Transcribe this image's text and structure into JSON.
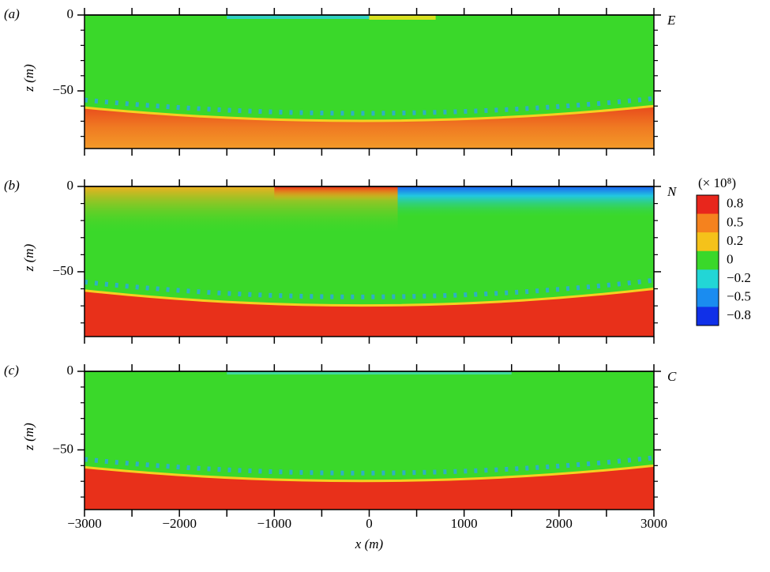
{
  "chart_data": [
    {
      "type": "heatmap",
      "panel_label": "(a)",
      "corner_label": "E",
      "ylabel": "z (m)",
      "xlim": [
        -3000,
        3000
      ],
      "ylim": [
        -88,
        0
      ],
      "show_xtick_labels": false,
      "xticks": [
        -3000,
        -2000,
        -1000,
        0,
        1000,
        2000,
        3000
      ],
      "xminor_ticks": [
        -2500,
        -1500,
        -500,
        500,
        1500,
        2500
      ],
      "yticks": [
        0,
        {
          "value": -50,
          "label": "−50"
        }
      ],
      "yminor_ticks": [
        -10,
        -20,
        -30,
        -40,
        -60,
        -70,
        -80
      ]
    },
    {
      "type": "heatmap",
      "panel_label": "(b)",
      "corner_label": "N",
      "ylabel": "z (m)",
      "xlim": [
        -3000,
        3000
      ],
      "ylim": [
        -88,
        0
      ],
      "show_xtick_labels": false,
      "xticks": [
        -3000,
        -2000,
        -1000,
        0,
        1000,
        2000,
        3000
      ],
      "xminor_ticks": [
        -2500,
        -1500,
        -500,
        500,
        1500,
        2500
      ],
      "yticks": [
        0,
        {
          "value": -50,
          "label": "−50"
        }
      ],
      "yminor_ticks": [
        -10,
        -20,
        -30,
        -40,
        -60,
        -70,
        -80
      ]
    },
    {
      "type": "heatmap",
      "panel_label": "(c)",
      "corner_label": "C",
      "ylabel": "z (m)",
      "xlabel": "x (m)",
      "xlim": [
        -3000,
        3000
      ],
      "ylim": [
        -88,
        0
      ],
      "show_xtick_labels": true,
      "xticks": [
        {
          "value": -3000,
          "label": "−3000"
        },
        {
          "value": -2000,
          "label": "−2000"
        },
        {
          "value": -1000,
          "label": "−1000"
        },
        0,
        1000,
        2000,
        3000
      ],
      "xminor_ticks": [
        -2500,
        -1500,
        -500,
        500,
        1500,
        2500
      ],
      "yticks": [
        0,
        {
          "value": -50,
          "label": "−50"
        }
      ],
      "yminor_ticks": [
        -10,
        -20,
        -30,
        -40,
        -60,
        -70,
        -80
      ]
    }
  ],
  "colorbar": {
    "title": "(× 10⁸)",
    "ticks": [
      0.8,
      0.5,
      0.2,
      0,
      {
        "value": -0.2,
        "label": "−0.2"
      },
      {
        "value": -0.5,
        "label": "−0.5"
      },
      {
        "value": -0.8,
        "label": "−0.8"
      }
    ],
    "colors": [
      "#e8261c",
      "#f5821e",
      "#f5c21a",
      "#3ad82a",
      "#22d6d6",
      "#1a8cf0",
      "#1030e8"
    ]
  }
}
